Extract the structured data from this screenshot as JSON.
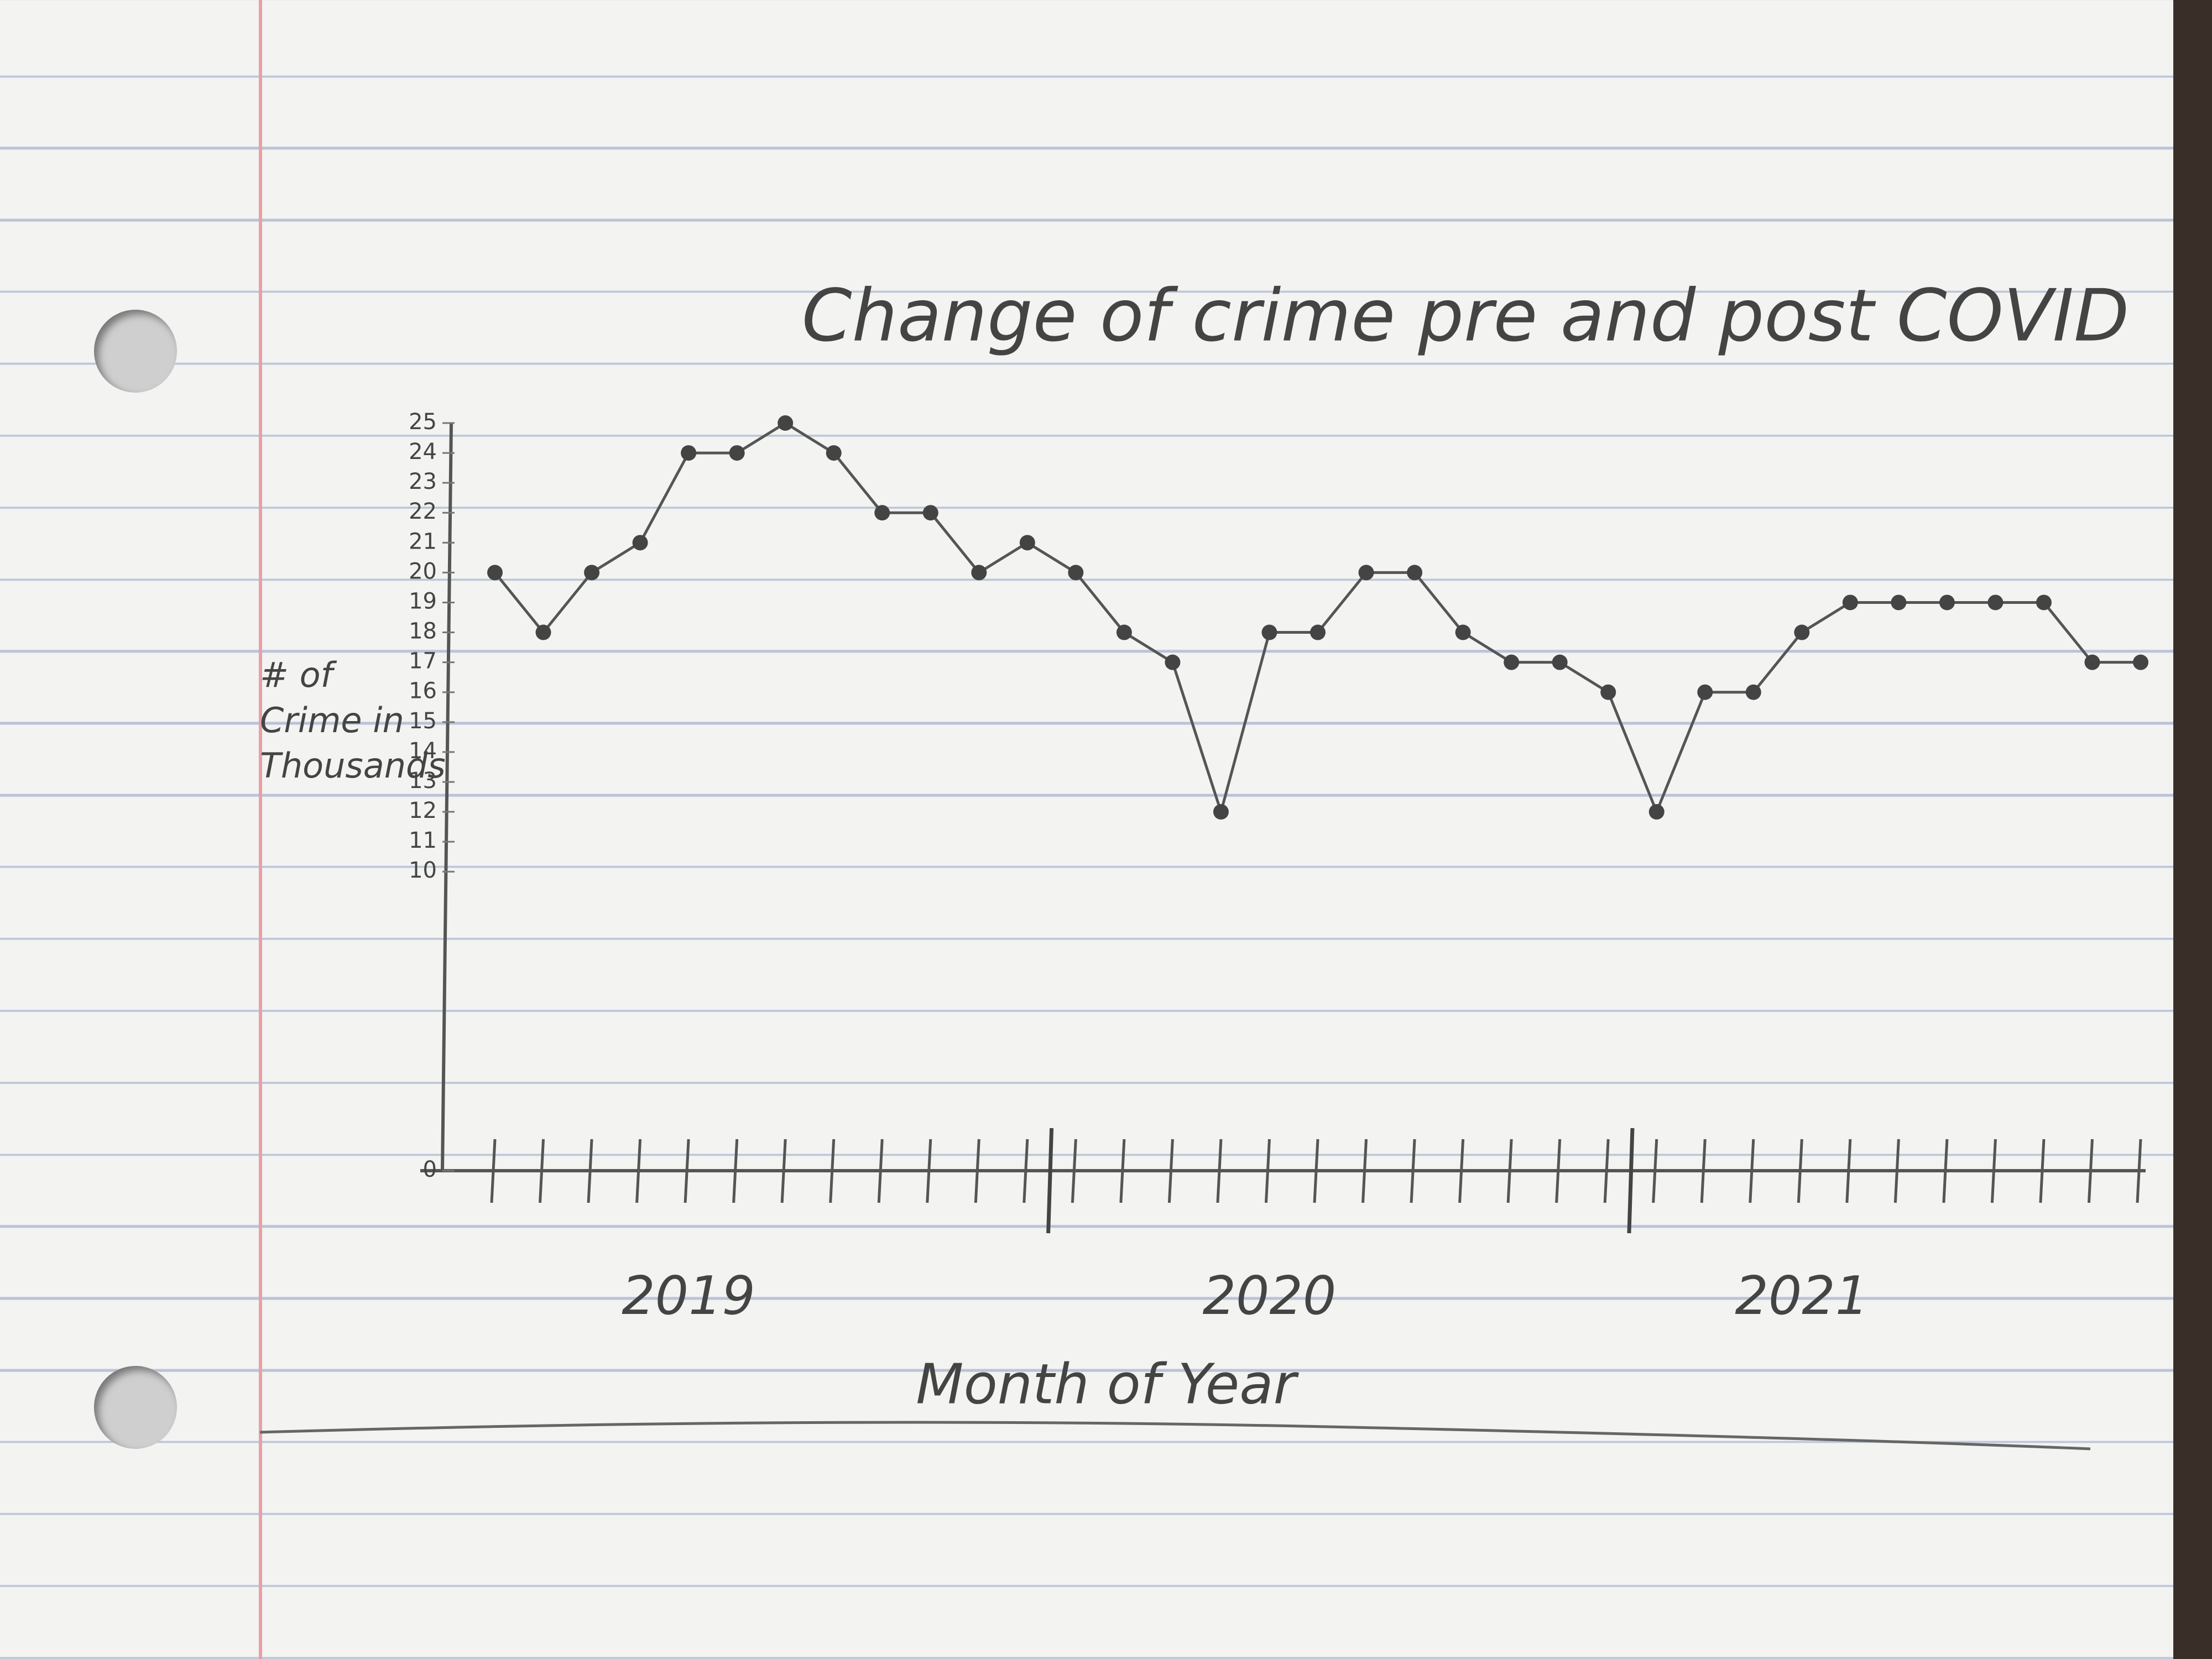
{
  "chart_data": {
    "type": "line",
    "title": "Change of crime pre and post COVID",
    "x_label": "Month of Year",
    "y_label": "# of Crime in Thousands",
    "categories": [
      null,
      null,
      null,
      null,
      "2019",
      null,
      null,
      null,
      null,
      null,
      null,
      null,
      null,
      null,
      null,
      null,
      "2020",
      null,
      null,
      null,
      null,
      null,
      null,
      null,
      null,
      null,
      null,
      "2021",
      null,
      null,
      null,
      null,
      null,
      null,
      null
    ],
    "values": [
      20,
      18,
      20,
      21,
      24,
      24,
      25,
      24,
      22,
      22,
      20,
      21,
      20,
      18,
      17,
      12,
      18,
      18,
      20,
      20,
      18,
      17,
      17,
      16,
      12,
      16,
      16,
      18,
      19,
      19,
      19,
      19,
      19,
      17,
      17
    ],
    "color": "#555555",
    "ylim": [
      0,
      25
    ],
    "yticks": [
      0,
      10,
      11,
      12,
      13,
      14,
      15,
      16,
      17,
      18,
      19,
      20,
      21,
      22,
      23,
      24,
      25
    ],
    "grid": false
  }
}
